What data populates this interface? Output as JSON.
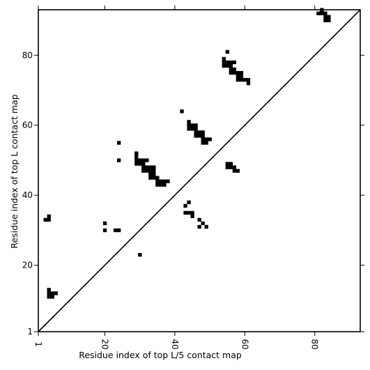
{
  "chart_data": {
    "type": "heatmap",
    "title": "",
    "xlabel": "Residue index of top L/5 contact map",
    "ylabel": "Residue index of top L contact map",
    "xlim": [
      1,
      93
    ],
    "ylim": [
      1,
      93
    ],
    "x_ticks": [
      {
        "value": 1,
        "label": "1"
      },
      {
        "value": 20,
        "label": "20"
      },
      {
        "value": 40,
        "label": "40"
      },
      {
        "value": 60,
        "label": "60"
      },
      {
        "value": 80,
        "label": "80"
      }
    ],
    "y_ticks": [
      {
        "value": 1,
        "label": "1"
      },
      {
        "value": 20,
        "label": "20"
      },
      {
        "value": 40,
        "label": "40"
      },
      {
        "value": 60,
        "label": "60"
      },
      {
        "value": 80,
        "label": "80"
      }
    ],
    "diagonal": true,
    "cell_color": "#000000",
    "contacts": [
      [
        3,
        33
      ],
      [
        4,
        33
      ],
      [
        4,
        34
      ],
      [
        4,
        11
      ],
      [
        5,
        11
      ],
      [
        4,
        12
      ],
      [
        5,
        12
      ],
      [
        6,
        12
      ],
      [
        4,
        13
      ],
      [
        20,
        30
      ],
      [
        20,
        32
      ],
      [
        23,
        30
      ],
      [
        24,
        30
      ],
      [
        24,
        50
      ],
      [
        24,
        55
      ],
      [
        30,
        23
      ],
      [
        29,
        49
      ],
      [
        30,
        49
      ],
      [
        31,
        49
      ],
      [
        29,
        50
      ],
      [
        30,
        50
      ],
      [
        31,
        50
      ],
      [
        32,
        50
      ],
      [
        29,
        51
      ],
      [
        29,
        52
      ],
      [
        31,
        47
      ],
      [
        32,
        47
      ],
      [
        33,
        47
      ],
      [
        34,
        47
      ],
      [
        31,
        48
      ],
      [
        32,
        48
      ],
      [
        33,
        48
      ],
      [
        34,
        48
      ],
      [
        33,
        45
      ],
      [
        34,
        45
      ],
      [
        35,
        45
      ],
      [
        33,
        46
      ],
      [
        34,
        46
      ],
      [
        35,
        43
      ],
      [
        36,
        43
      ],
      [
        37,
        43
      ],
      [
        35,
        44
      ],
      [
        36,
        44
      ],
      [
        37,
        44
      ],
      [
        38,
        44
      ],
      [
        42,
        64
      ],
      [
        43,
        35
      ],
      [
        44,
        35
      ],
      [
        45,
        35
      ],
      [
        45,
        34
      ],
      [
        43,
        37
      ],
      [
        44,
        38
      ],
      [
        47,
        31
      ],
      [
        48,
        32
      ],
      [
        47,
        33
      ],
      [
        49,
        31
      ],
      [
        44,
        59
      ],
      [
        45,
        59
      ],
      [
        46,
        59
      ],
      [
        44,
        60
      ],
      [
        45,
        60
      ],
      [
        46,
        60
      ],
      [
        44,
        61
      ],
      [
        46,
        57
      ],
      [
        47,
        57
      ],
      [
        48,
        57
      ],
      [
        46,
        58
      ],
      [
        47,
        58
      ],
      [
        48,
        58
      ],
      [
        48,
        55
      ],
      [
        49,
        55
      ],
      [
        48,
        56
      ],
      [
        49,
        56
      ],
      [
        50,
        56
      ],
      [
        55,
        48
      ],
      [
        56,
        48
      ],
      [
        57,
        48
      ],
      [
        55,
        49
      ],
      [
        56,
        49
      ],
      [
        57,
        47
      ],
      [
        58,
        47
      ],
      [
        54,
        77
      ],
      [
        55,
        77
      ],
      [
        56,
        77
      ],
      [
        54,
        78
      ],
      [
        55,
        78
      ],
      [
        56,
        78
      ],
      [
        57,
        78
      ],
      [
        54,
        79
      ],
      [
        55,
        81
      ],
      [
        56,
        75
      ],
      [
        57,
        75
      ],
      [
        56,
        76
      ],
      [
        57,
        76
      ],
      [
        58,
        73
      ],
      [
        59,
        73
      ],
      [
        60,
        73
      ],
      [
        61,
        73
      ],
      [
        58,
        74
      ],
      [
        59,
        74
      ],
      [
        58,
        75
      ],
      [
        59,
        75
      ],
      [
        61,
        72
      ],
      [
        81,
        92
      ],
      [
        82,
        92
      ],
      [
        83,
        92
      ],
      [
        82,
        93
      ],
      [
        83,
        90
      ],
      [
        84,
        90
      ],
      [
        83,
        91
      ],
      [
        84,
        91
      ]
    ]
  }
}
